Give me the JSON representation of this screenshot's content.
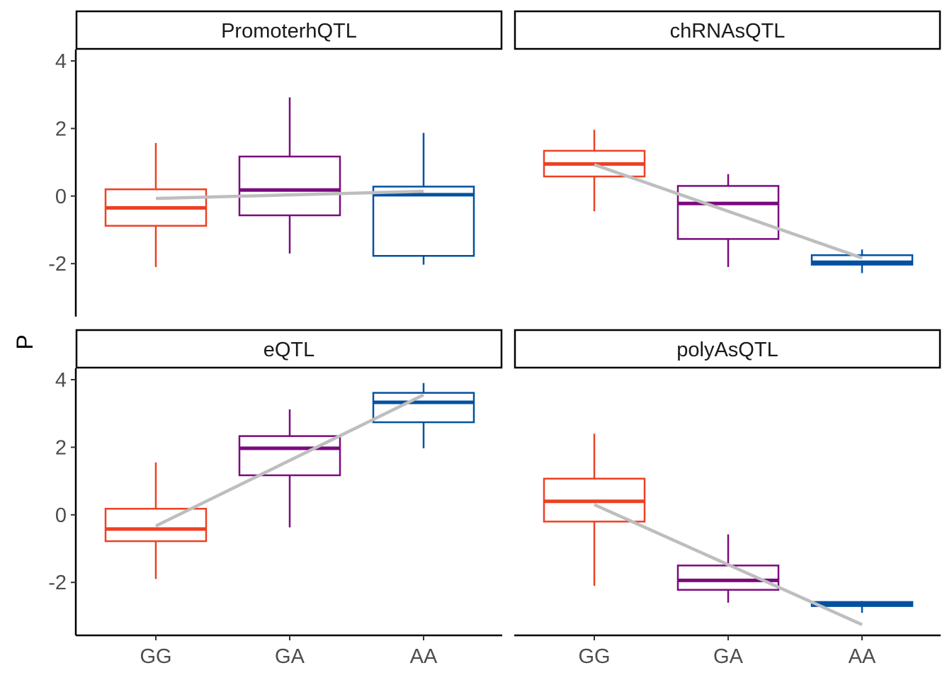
{
  "chart_data": {
    "type": "box",
    "ylabel": "P",
    "xlabel": "",
    "categories": [
      "GG",
      "GA",
      "AA"
    ],
    "y_ticks": [
      4,
      2,
      0,
      -2
    ],
    "y_tick_labels": [
      "4",
      "2",
      "0",
      "-2"
    ],
    "ylim": [
      -3.5,
      4.1
    ],
    "category_colors": {
      "GG": "#EE4023",
      "GA": "#7B0A7E",
      "AA": "#0251A0"
    },
    "trend_color": "#BEBEBE",
    "panels": [
      {
        "label": "PromoterhQTL",
        "boxes": [
          {
            "category": "GG",
            "whisker_low": -2.1,
            "q1": -0.88,
            "median": -0.35,
            "q3": 0.2,
            "whisker_high": 1.57
          },
          {
            "category": "GA",
            "whisker_low": -1.7,
            "q1": -0.57,
            "median": 0.18,
            "q3": 1.17,
            "whisker_high": 2.92
          },
          {
            "category": "AA",
            "whisker_low": -2.03,
            "q1": -1.77,
            "median": 0.04,
            "q3": 0.28,
            "whisker_high": 1.87
          }
        ],
        "trend": {
          "GG": -0.07,
          "AA": 0.14
        }
      },
      {
        "label": "chRNAsQTL",
        "boxes": [
          {
            "category": "GG",
            "whisker_low": -0.45,
            "q1": 0.58,
            "median": 0.95,
            "q3": 1.34,
            "whisker_high": 1.96
          },
          {
            "category": "GA",
            "whisker_low": -2.1,
            "q1": -1.27,
            "median": -0.22,
            "q3": 0.3,
            "whisker_high": 0.65
          },
          {
            "category": "AA",
            "whisker_low": -2.28,
            "q1": -2.03,
            "median": -1.96,
            "q3": -1.75,
            "whisker_high": -1.58
          }
        ],
        "trend": {
          "GG": 0.93,
          "AA": -1.83
        }
      },
      {
        "label": "eQTL",
        "boxes": [
          {
            "category": "GG",
            "whisker_low": -1.9,
            "q1": -0.78,
            "median": -0.42,
            "q3": 0.18,
            "whisker_high": 1.55
          },
          {
            "category": "GA",
            "whisker_low": -0.37,
            "q1": 1.17,
            "median": 1.97,
            "q3": 2.33,
            "whisker_high": 3.12
          },
          {
            "category": "AA",
            "whisker_low": 1.97,
            "q1": 2.74,
            "median": 3.33,
            "q3": 3.61,
            "whisker_high": 3.9
          }
        ],
        "trend": {
          "GG": -0.33,
          "AA": 3.55
        }
      },
      {
        "label": "polyAsQTL",
        "boxes": [
          {
            "category": "GG",
            "whisker_low": -2.1,
            "q1": -0.2,
            "median": 0.4,
            "q3": 1.07,
            "whisker_high": 2.4
          },
          {
            "category": "GA",
            "whisker_low": -2.6,
            "q1": -2.22,
            "median": -1.94,
            "q3": -1.5,
            "whisker_high": -0.58
          },
          {
            "category": "AA",
            "whisker_low": -2.9,
            "q1": -2.7,
            "median": -2.65,
            "q3": -2.58,
            "whisker_high": -2.55
          }
        ],
        "trend": {
          "GG": 0.3,
          "AA": -3.25
        }
      }
    ]
  }
}
